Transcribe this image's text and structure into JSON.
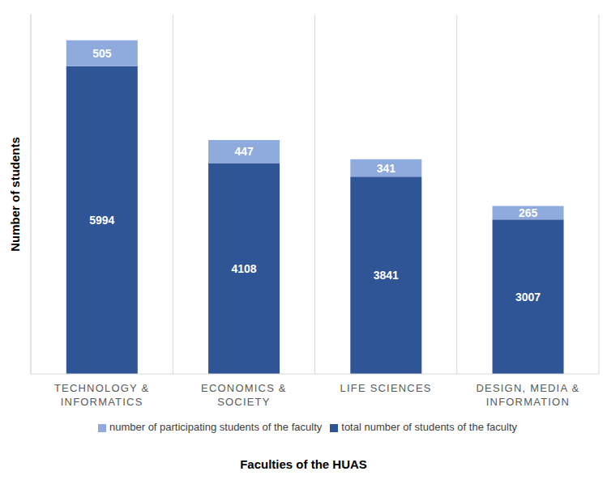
{
  "chart_data": {
    "type": "bar",
    "stacked": true,
    "data_labels": true,
    "tick_labels": "x",
    "grid": true,
    "legend": "bottom",
    "x_label": "Faculties of the HUAS",
    "y_label": "Number of students",
    "categories": [
      "TECHNOLOGY & INFORMATICS",
      "ECONOMICS & SOCIETY",
      "LIFE SCIENCES",
      "DESIGN, MEDIA & INFORMATION"
    ],
    "ylim": [
      0,
      7000
    ],
    "series": [
      {
        "name": "total number of students of the faculty",
        "color": "#2f5597",
        "values": [
          5994,
          4108,
          3841,
          3007
        ]
      },
      {
        "name": "number of participating students of the faculty",
        "color": "#8faadc",
        "values": [
          505,
          447,
          341,
          265
        ]
      }
    ]
  }
}
